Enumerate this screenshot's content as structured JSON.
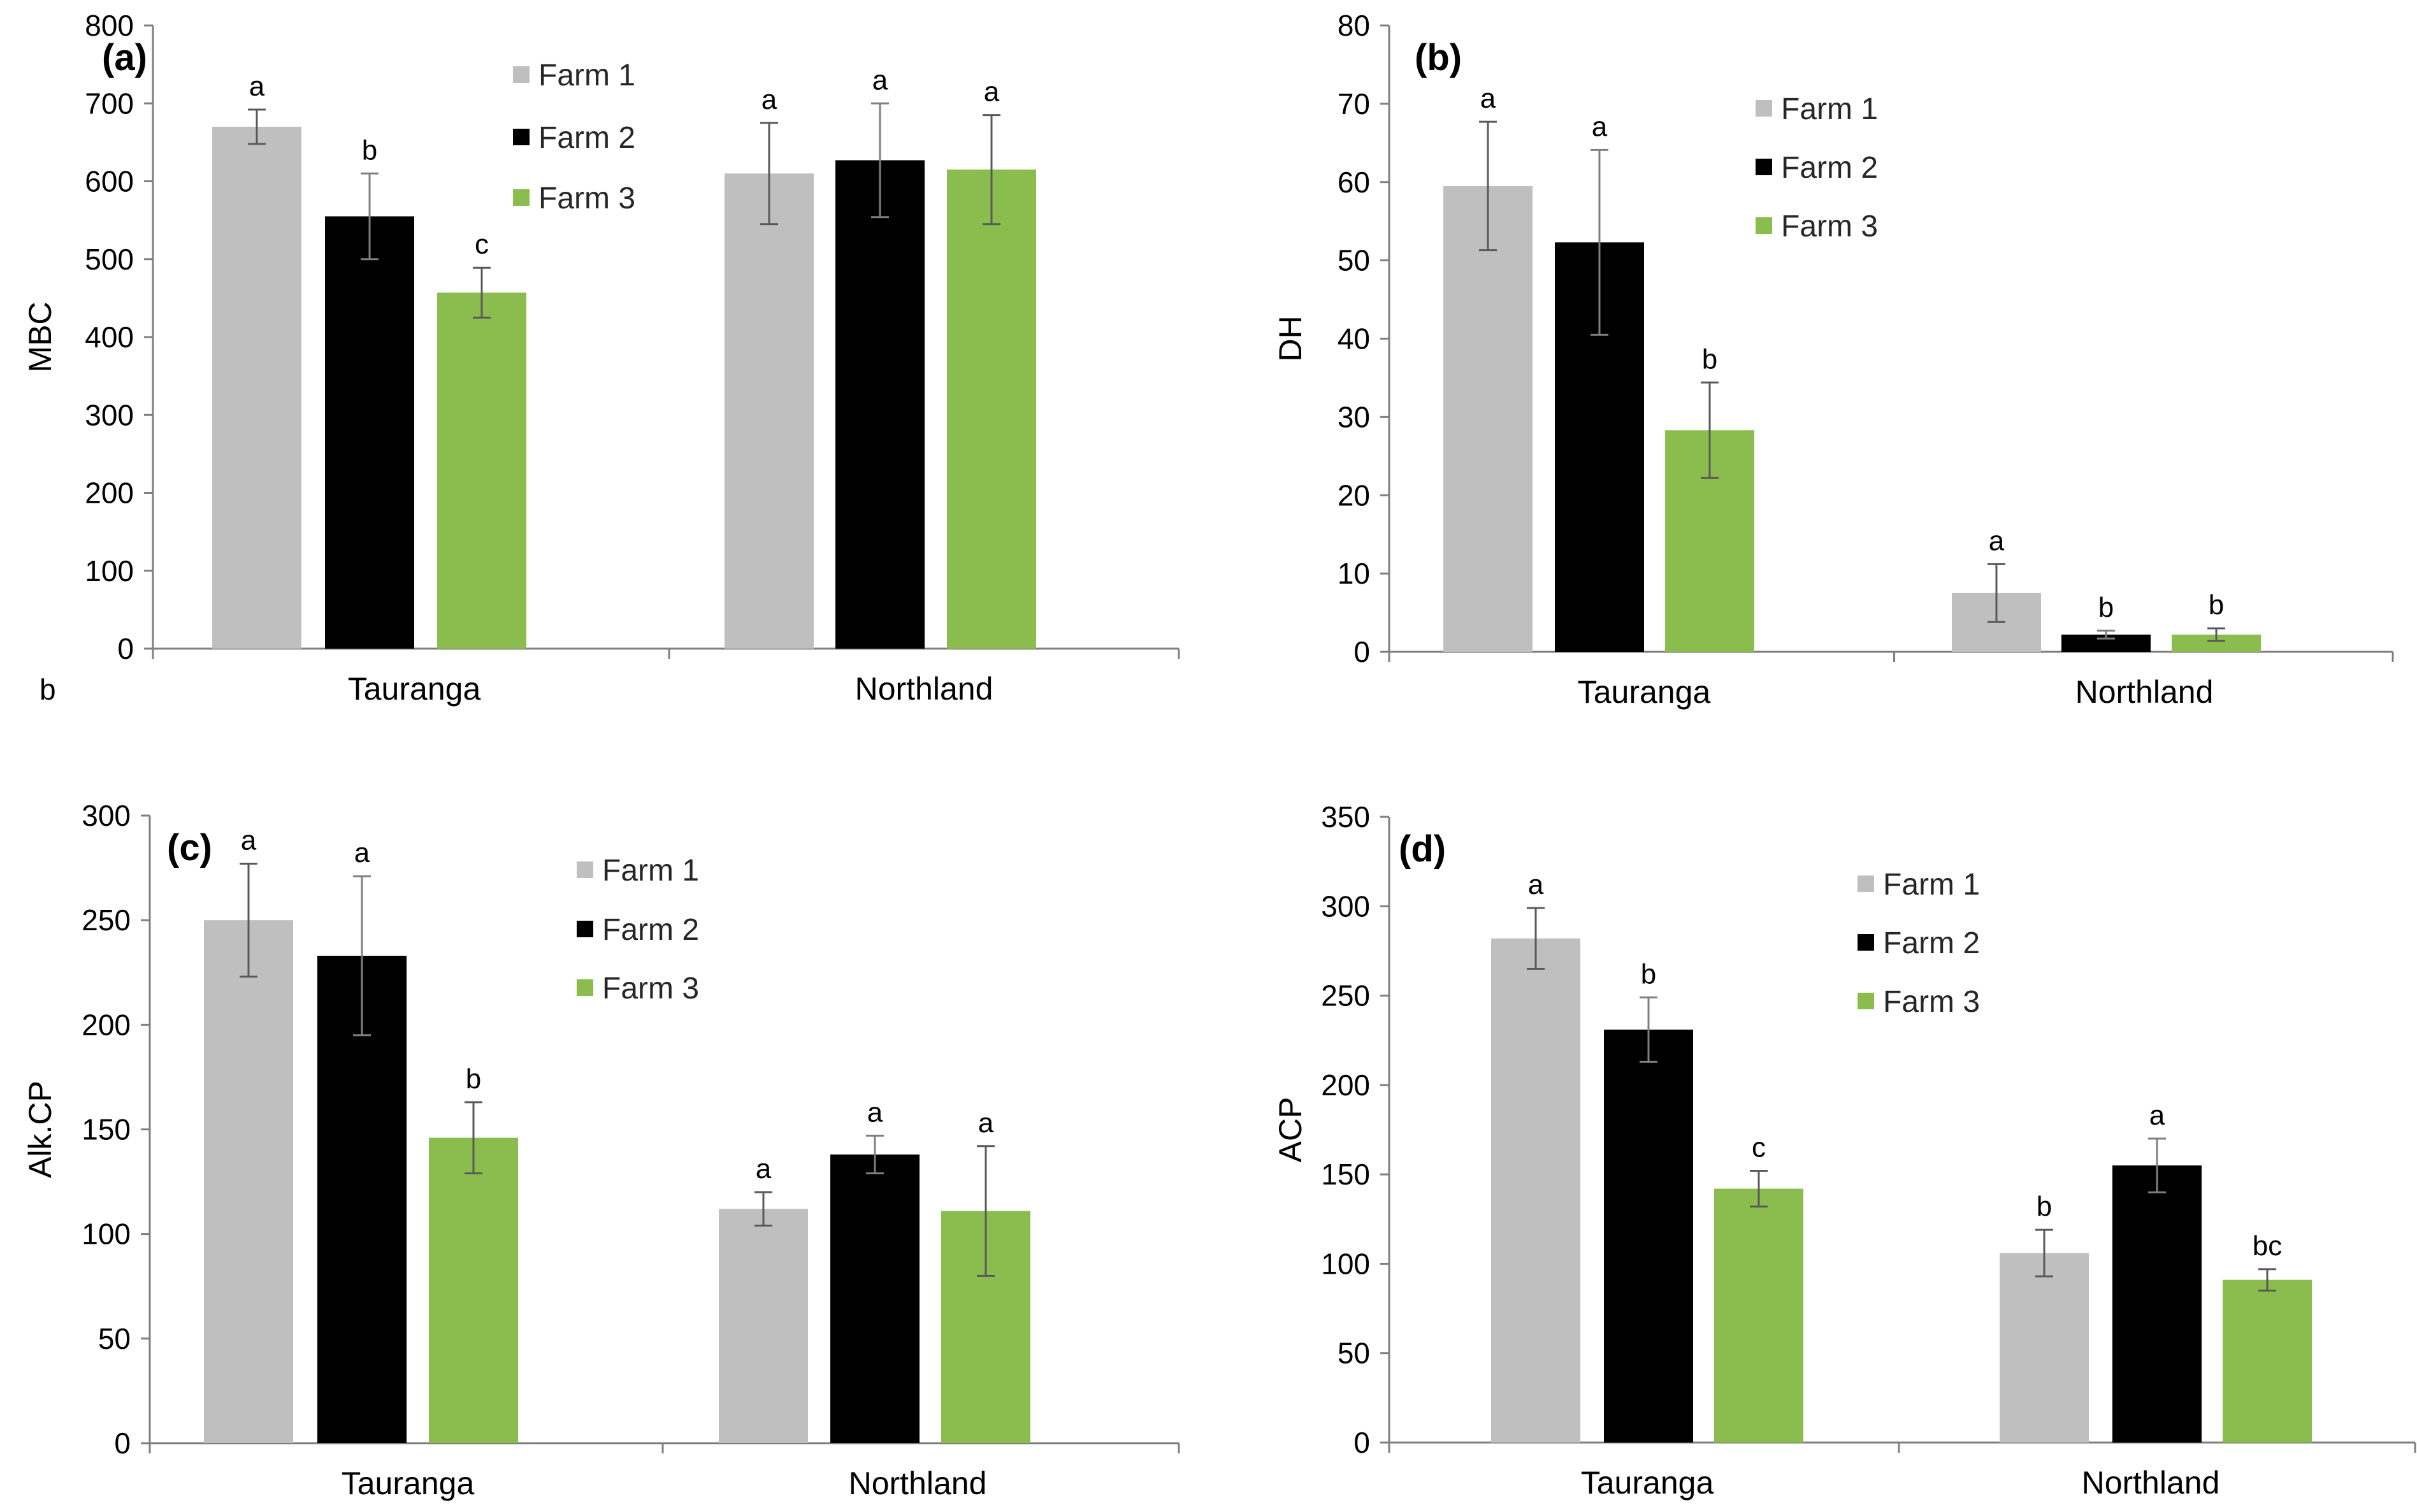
{
  "stray_text": "b",
  "colors": {
    "farm1": "#bfbfbf",
    "farm2": "#000000",
    "farm3": "#8bbd4e",
    "axis": "#7f7f7f"
  },
  "chart_data": [
    {
      "type": "bar",
      "panel": "(a)",
      "ylabel": "MBC",
      "ylim": [
        0,
        800
      ],
      "yticks": [
        0,
        100,
        200,
        300,
        400,
        500,
        600,
        700,
        800
      ],
      "categories": [
        "Tauranga",
        "Northland"
      ],
      "legend": "top-center",
      "series": [
        {
          "name": "Farm 1",
          "values": [
            670,
            610
          ],
          "errors": [
            22,
            65
          ],
          "letters": [
            "a",
            "a"
          ]
        },
        {
          "name": "Farm 2",
          "values": [
            555,
            627
          ],
          "errors": [
            55,
            73
          ],
          "letters": [
            "b",
            "a"
          ]
        },
        {
          "name": "Farm 3",
          "values": [
            457,
            615
          ],
          "errors": [
            32,
            70
          ],
          "letters": [
            "c",
            "a"
          ]
        }
      ]
    },
    {
      "type": "bar",
      "panel": "(b)",
      "ylabel": "DH",
      "ylim": [
        0,
        80
      ],
      "yticks": [
        0,
        10,
        20,
        30,
        40,
        50,
        60,
        70,
        80
      ],
      "categories": [
        "Tauranga",
        "Northland"
      ],
      "legend": "top-center",
      "series": [
        {
          "name": "Farm 1",
          "values": [
            59.5,
            7.5
          ],
          "errors": [
            8.2,
            3.7
          ],
          "letters": [
            "a",
            "a"
          ]
        },
        {
          "name": "Farm 2",
          "values": [
            52.3,
            2.2
          ],
          "errors": [
            11.8,
            0.5
          ],
          "letters": [
            "a",
            "b"
          ]
        },
        {
          "name": "Farm 3",
          "values": [
            28.3,
            2.2
          ],
          "errors": [
            6.1,
            0.8
          ],
          "letters": [
            "b",
            "b"
          ]
        }
      ]
    },
    {
      "type": "bar",
      "panel": "(c)",
      "ylabel": "Alk.CP",
      "ylim": [
        0,
        300
      ],
      "yticks": [
        0,
        50,
        100,
        150,
        200,
        250,
        300
      ],
      "categories": [
        "Tauranga",
        "Northland"
      ],
      "legend": "top-center",
      "series": [
        {
          "name": "Farm 1",
          "values": [
            250,
            112
          ],
          "errors": [
            27,
            8
          ],
          "letters": [
            "a",
            "a"
          ]
        },
        {
          "name": "Farm 2",
          "values": [
            233,
            138
          ],
          "errors": [
            38,
            9
          ],
          "letters": [
            "a",
            "a"
          ]
        },
        {
          "name": "Farm 3",
          "values": [
            146,
            111
          ],
          "errors": [
            17,
            31
          ],
          "letters": [
            "b",
            "a"
          ]
        }
      ]
    },
    {
      "type": "bar",
      "panel": "(d)",
      "ylabel": "ACP",
      "ylim": [
        0,
        350
      ],
      "yticks": [
        0,
        50,
        100,
        150,
        200,
        250,
        300,
        350
      ],
      "categories": [
        "Tauranga",
        "Northland"
      ],
      "legend": "top-center",
      "series": [
        {
          "name": "Farm 1",
          "values": [
            282,
            106
          ],
          "errors": [
            17,
            13
          ],
          "letters": [
            "a",
            "b"
          ]
        },
        {
          "name": "Farm 2",
          "values": [
            231,
            155
          ],
          "errors": [
            18,
            15
          ],
          "letters": [
            "b",
            "a"
          ]
        },
        {
          "name": "Farm 3",
          "values": [
            142,
            91
          ],
          "errors": [
            10,
            6
          ],
          "letters": [
            "c",
            "bc"
          ]
        }
      ]
    }
  ]
}
